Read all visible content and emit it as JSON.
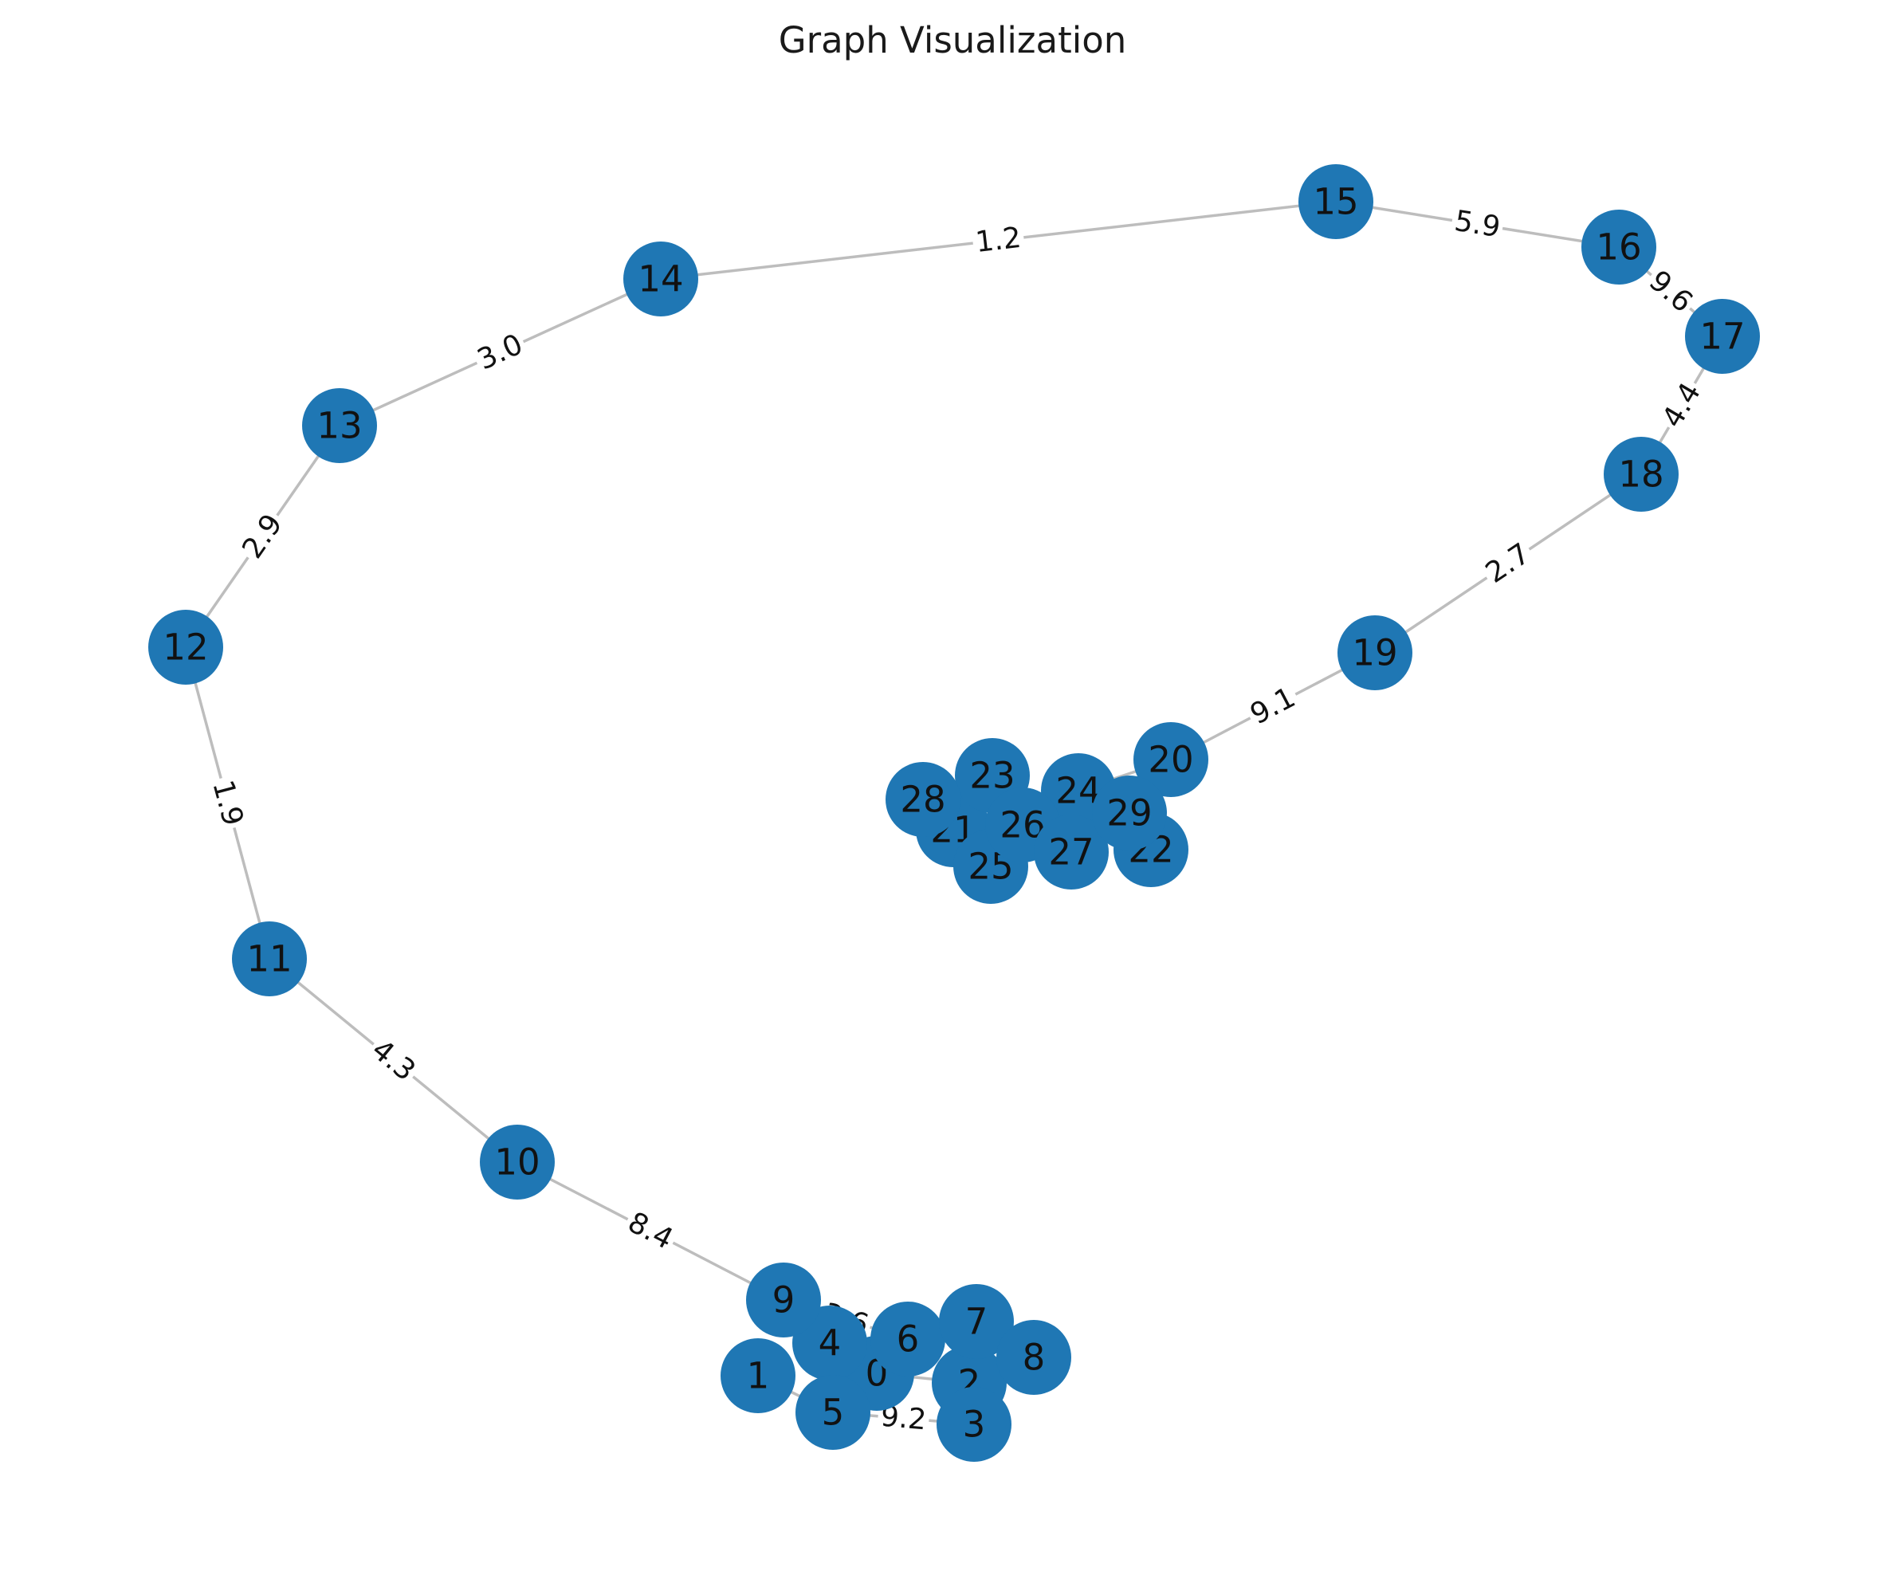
{
  "title": "Graph Visualization",
  "colors": {
    "node": "#1f77b4",
    "edge": "#bdbdbd",
    "background": "#ffffff"
  },
  "nodes": [
    {
      "id": "0"
    },
    {
      "id": "1"
    },
    {
      "id": "2"
    },
    {
      "id": "3"
    },
    {
      "id": "4"
    },
    {
      "id": "5"
    },
    {
      "id": "6"
    },
    {
      "id": "7"
    },
    {
      "id": "8"
    },
    {
      "id": "9"
    },
    {
      "id": "10"
    },
    {
      "id": "11"
    },
    {
      "id": "12"
    },
    {
      "id": "13"
    },
    {
      "id": "14"
    },
    {
      "id": "15"
    },
    {
      "id": "16"
    },
    {
      "id": "17"
    },
    {
      "id": "18"
    },
    {
      "id": "19"
    },
    {
      "id": "20"
    },
    {
      "id": "21"
    },
    {
      "id": "22"
    },
    {
      "id": "23"
    },
    {
      "id": "24"
    },
    {
      "id": "25"
    },
    {
      "id": "26"
    },
    {
      "id": "27"
    },
    {
      "id": "28"
    },
    {
      "id": "29"
    }
  ],
  "edges": [
    {
      "source": "9",
      "target": "10",
      "weight": "8.4"
    },
    {
      "source": "10",
      "target": "11",
      "weight": "4.3"
    },
    {
      "source": "11",
      "target": "12",
      "weight": "1.9"
    },
    {
      "source": "12",
      "target": "13",
      "weight": "2.9"
    },
    {
      "source": "13",
      "target": "14",
      "weight": "3.0"
    },
    {
      "source": "14",
      "target": "15",
      "weight": "1.2"
    },
    {
      "source": "15",
      "target": "16",
      "weight": "5.9"
    },
    {
      "source": "16",
      "target": "17",
      "weight": "9.6"
    },
    {
      "source": "17",
      "target": "18",
      "weight": "4.4"
    },
    {
      "source": "18",
      "target": "19",
      "weight": "2.7"
    },
    {
      "source": "19",
      "target": "20",
      "weight": "9.1"
    },
    {
      "source": "9",
      "target": "6",
      "weight": "3.6"
    },
    {
      "source": "5",
      "target": "3",
      "weight": "9.2"
    },
    {
      "source": "1",
      "target": "5",
      "weight": ""
    },
    {
      "source": "0",
      "target": "2",
      "weight": ""
    },
    {
      "source": "2",
      "target": "8",
      "weight": ""
    },
    {
      "source": "24",
      "target": "20",
      "weight": ""
    },
    {
      "source": "29",
      "target": "22",
      "weight": ""
    }
  ]
}
